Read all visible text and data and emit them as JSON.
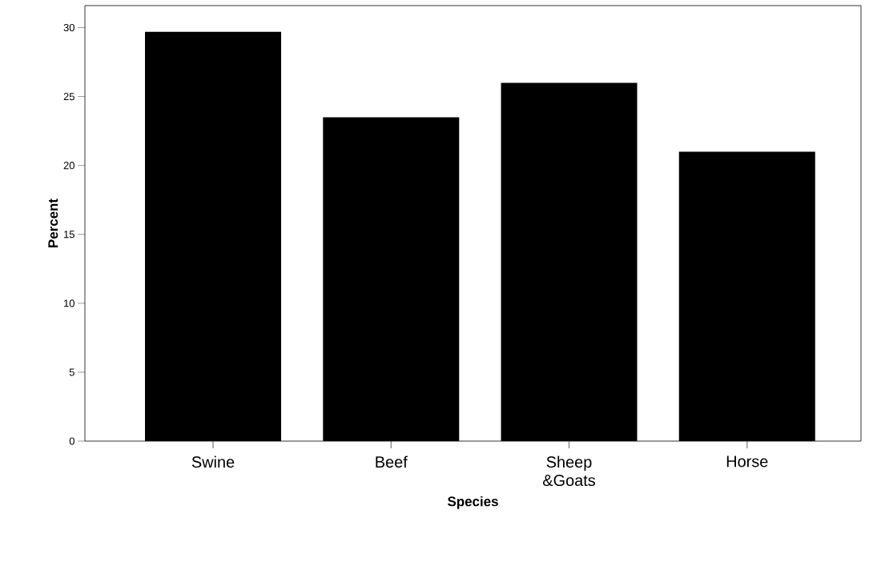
{
  "chart_data": {
    "type": "bar",
    "xlabel": "Species",
    "ylabel": "Percent",
    "categories": [
      "Swine",
      "Beef",
      "Sheep &Goats",
      "Horse"
    ],
    "values": [
      29.7,
      23.5,
      26.0,
      21.0
    ],
    "color": "#000000",
    "ylim": [
      0,
      31.6
    ],
    "yticks": [
      0,
      5,
      10,
      15,
      20,
      25,
      30
    ]
  }
}
